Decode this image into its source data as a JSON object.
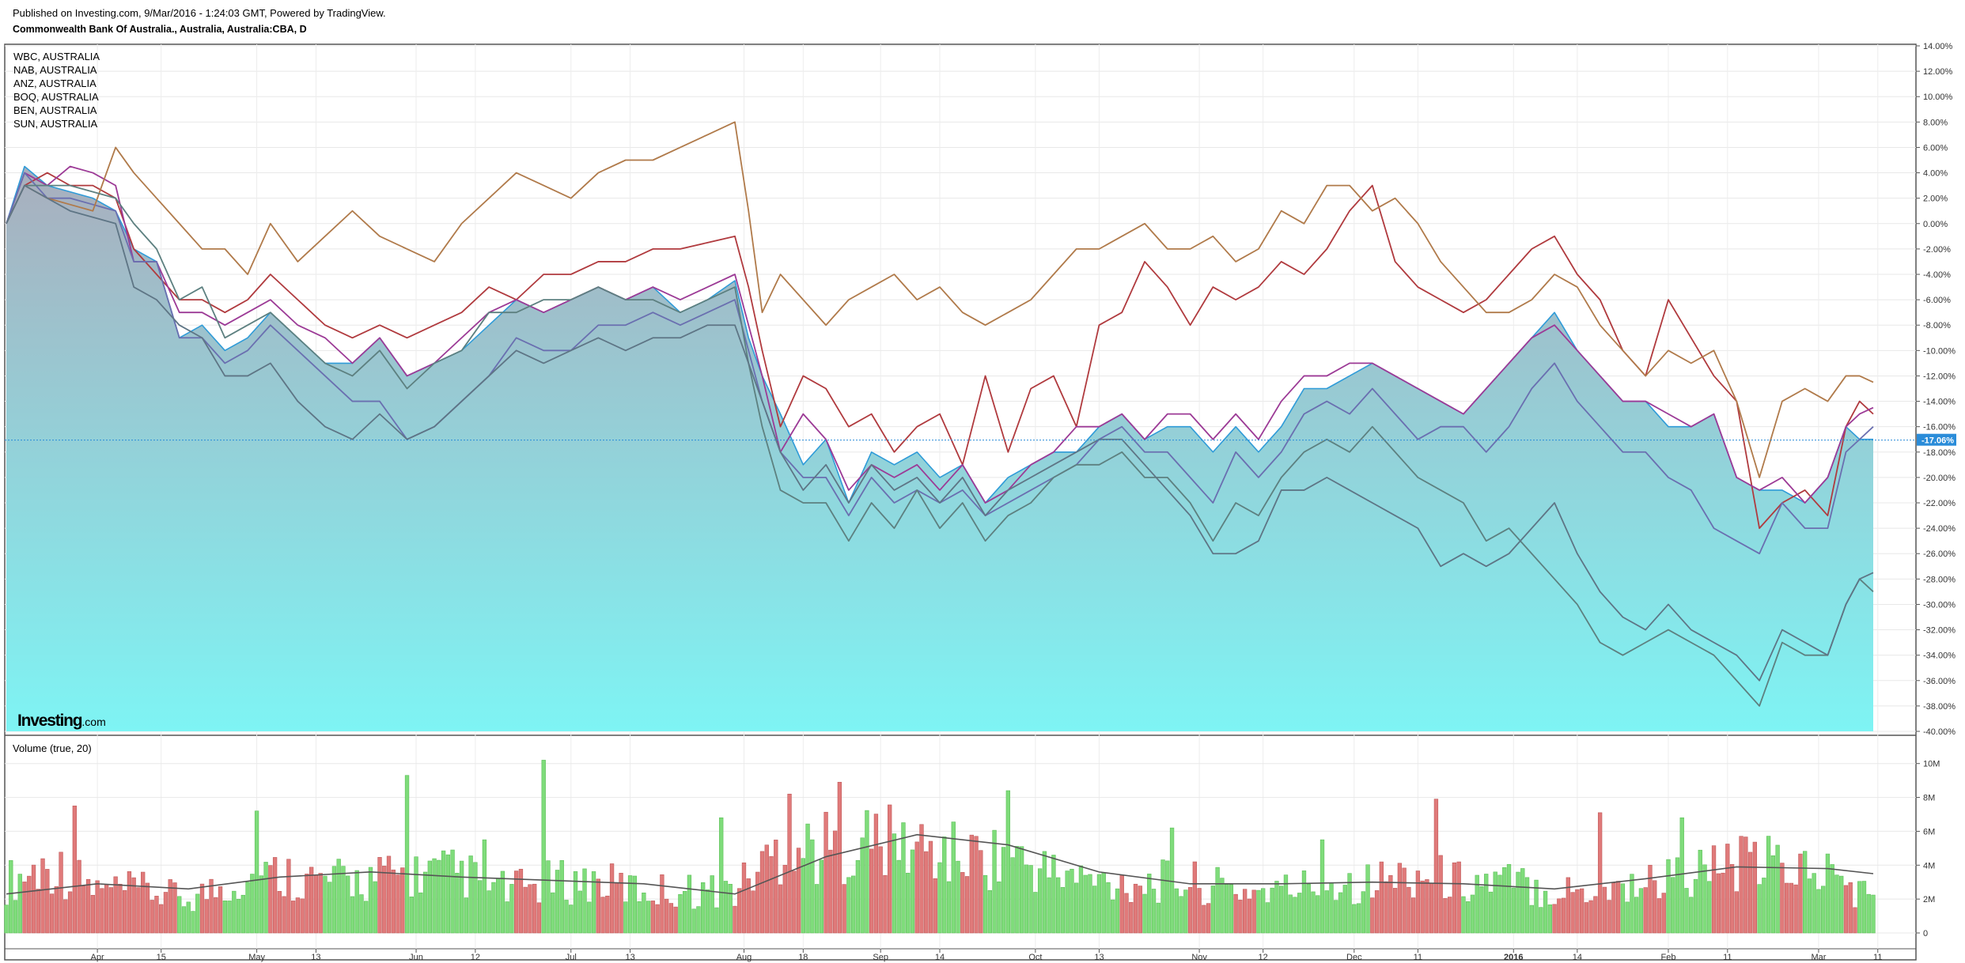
{
  "header": {
    "published": "Published on Investing.com, 9/Mar/2016 - 1:24:03 GMT, Powered by TradingView.",
    "title": "Commonwealth Bank Of Australia., Australia, Australia:CBA, D"
  },
  "legend": [
    "WBC, AUSTRALIA",
    "NAB, AUSTRALIA",
    "ANZ, AUSTRALIA",
    "BOQ, AUSTRALIA",
    "BEN, AUSTRALIA",
    "SUN, AUSTRALIA"
  ],
  "current_value_label": "-17.06%",
  "volume_title": "Volume (true, 20)",
  "logo": {
    "main": "Investing",
    "suffix": ".com"
  },
  "colors": {
    "area_top": "#a9aebd",
    "area_bottom": "#7ef4f4",
    "area_line": "#2f9bd8",
    "up_bar": "#7fdc7b",
    "down_bar": "#e07a7a",
    "current_badge": "#2a8cd9"
  },
  "chart_data": [
    {
      "type": "line",
      "title": "Commonwealth Bank Of Australia., Australia, Australia:CBA, D",
      "y_unit": "%",
      "ylim": [
        -40,
        14
      ],
      "y_ticks": [
        "14.00%",
        "12.00%",
        "10.00%",
        "8.00%",
        "6.00%",
        "4.00%",
        "2.00%",
        "0.00%",
        "-2.00%",
        "-4.00%",
        "-6.00%",
        "-8.00%",
        "-10.00%",
        "-12.00%",
        "-14.00%",
        "-16.00%",
        "-18.00%",
        "-20.00%",
        "-22.00%",
        "-24.00%",
        "-26.00%",
        "-28.00%",
        "-30.00%",
        "-32.00%",
        "-34.00%",
        "-36.00%",
        "-38.00%",
        "-40.00%"
      ],
      "x_ticks": [
        "Apr",
        "15",
        "May",
        "13",
        "Jun",
        "12",
        "Jul",
        "13",
        "Aug",
        "18",
        "Sep",
        "14",
        "Oct",
        "13",
        "Nov",
        "12",
        "Dec",
        "11",
        "2016",
        "14",
        "Feb",
        "11",
        "Mar",
        "11"
      ],
      "x_tick_day": [
        20,
        34,
        55,
        68,
        90,
        103,
        124,
        137,
        162,
        175,
        192,
        205,
        226,
        240,
        262,
        276,
        296,
        310,
        331,
        345,
        365,
        378,
        398,
        411
      ],
      "grid": true,
      "series_points_day": [
        0,
        4,
        9,
        14,
        19,
        24,
        28,
        33,
        38,
        43,
        48,
        53,
        58,
        64,
        70,
        76,
        82,
        88,
        94,
        100,
        106,
        112,
        118,
        124,
        130,
        136,
        142,
        148,
        154,
        160,
        163,
        166,
        170,
        175,
        180,
        185,
        190,
        195,
        200,
        205,
        210,
        215,
        220,
        225,
        230,
        235,
        240,
        245,
        250,
        255,
        260,
        265,
        270,
        275,
        280,
        285,
        290,
        295,
        300,
        305,
        310,
        315,
        320,
        325,
        330,
        335,
        340,
        345,
        350,
        355,
        360,
        365,
        370,
        375,
        380,
        385,
        390,
        395,
        400,
        404,
        407,
        410
      ],
      "series": [
        {
          "name": "CBA",
          "color": "#2f9bd8",
          "area": true,
          "values": [
            0,
            4.5,
            3,
            2.5,
            2,
            1,
            -2,
            -3,
            -9,
            -8,
            -10,
            -9,
            -7,
            -9,
            -11,
            -11,
            -9,
            -12,
            -11,
            -10,
            -8,
            -6,
            -7,
            -6,
            -5,
            -6,
            -5,
            -7,
            -6,
            -4.5,
            -9,
            -12,
            -15,
            -19,
            -17,
            -22,
            -18,
            -19,
            -18,
            -20,
            -19,
            -22,
            -20,
            -19,
            -18,
            -18,
            -16,
            -15,
            -17,
            -16,
            -16,
            -18,
            -16,
            -18,
            -16,
            -13,
            -13,
            -12,
            -11,
            -12,
            -13,
            -14,
            -15,
            -13,
            -11,
            -9,
            -7,
            -10,
            -12,
            -14,
            -14,
            -16,
            -16,
            -15,
            -20,
            -21,
            -21,
            -22,
            -20,
            -16,
            -17,
            -17
          ]
        },
        {
          "name": "WBC, AUSTRALIA",
          "color": "#b03a3e",
          "values": [
            0,
            3,
            4,
            3,
            3,
            2,
            -2,
            -4,
            -6,
            -6,
            -7,
            -6,
            -4,
            -6,
            -8,
            -9,
            -8,
            -9,
            -8,
            -7,
            -5,
            -6,
            -4,
            -4,
            -3,
            -3,
            -2,
            -2,
            -1.5,
            -1,
            -5,
            -10,
            -16,
            -12,
            -13,
            -16,
            -15,
            -18,
            -16,
            -15,
            -19,
            -12,
            -18,
            -13,
            -12,
            -16,
            -8,
            -7,
            -3,
            -5,
            -8,
            -5,
            -6,
            -5,
            -3,
            -4,
            -2,
            1,
            3,
            -3,
            -5,
            -6,
            -7,
            -6,
            -4,
            -2,
            -1,
            -4,
            -6,
            -10,
            -12,
            -6,
            -9,
            -12,
            -14,
            -24,
            -22,
            -21,
            -23,
            -16,
            -14,
            -15
          ]
        },
        {
          "name": "NAB, AUSTRALIA",
          "color": "#9c3a96",
          "values": [
            0,
            4,
            3,
            4.5,
            4,
            3,
            -3,
            -3,
            -7,
            -7,
            -8,
            -7,
            -6,
            -8,
            -9,
            -11,
            -9,
            -12,
            -11,
            -9,
            -7,
            -6,
            -7,
            -6,
            -5,
            -6,
            -5,
            -6,
            -5,
            -4,
            -8,
            -12,
            -18,
            -15,
            -17,
            -21,
            -19,
            -20,
            -19,
            -21,
            -19,
            -22,
            -21,
            -19,
            -18,
            -16,
            -16,
            -15,
            -17,
            -15,
            -15,
            -17,
            -15,
            -17,
            -14,
            -12,
            -12,
            -11,
            -11,
            -12,
            -13,
            -14,
            -15,
            -13,
            -11,
            -9,
            -8,
            -10,
            -12,
            -14,
            -14,
            -15,
            -16,
            -15,
            -20,
            -21,
            -20,
            -22,
            -20,
            -16,
            -15,
            -14.5
          ]
        },
        {
          "name": "ANZ, AUSTRALIA",
          "color": "#6a6fb0",
          "values": [
            0,
            4,
            2,
            2,
            1.5,
            1,
            -3,
            -3,
            -9,
            -9,
            -11,
            -10,
            -8,
            -10,
            -12,
            -14,
            -14,
            -17,
            -16,
            -14,
            -12,
            -9,
            -10,
            -10,
            -8,
            -8,
            -7,
            -8,
            -7,
            -6,
            -10,
            -14,
            -18,
            -20,
            -20,
            -23,
            -20,
            -22,
            -21,
            -22,
            -21,
            -23,
            -22,
            -21,
            -20,
            -19,
            -17,
            -16,
            -18,
            -18,
            -20,
            -22,
            -18,
            -20,
            -18,
            -15,
            -14,
            -15,
            -13,
            -15,
            -17,
            -16,
            -16,
            -18,
            -16,
            -13,
            -11,
            -14,
            -16,
            -18,
            -18,
            -20,
            -21,
            -24,
            -25,
            -26,
            -22,
            -24,
            -24,
            -18,
            -17,
            -16
          ]
        },
        {
          "name": "BOQ, AUSTRALIA",
          "color": "#b07a4a",
          "values": [
            0,
            3,
            2,
            1.5,
            1,
            6,
            4,
            2,
            0,
            -2,
            -2,
            -4,
            0,
            -3,
            -1,
            1,
            -1,
            -2,
            -3,
            0,
            2,
            4,
            3,
            2,
            4,
            5,
            5,
            6,
            7,
            8,
            1,
            -7,
            -4,
            -6,
            -8,
            -6,
            -5,
            -4,
            -6,
            -5,
            -7,
            -8,
            -7,
            -6,
            -4,
            -2,
            -2,
            -1,
            0,
            -2,
            -2,
            -1,
            -3,
            -2,
            1,
            0,
            3,
            3,
            1,
            2,
            0,
            -3,
            -5,
            -7,
            -7,
            -6,
            -4,
            -5,
            -8,
            -10,
            -12,
            -10,
            -11,
            -10,
            -14,
            -20,
            -14,
            -13,
            -14,
            -12,
            -12,
            -12.5
          ]
        },
        {
          "name": "BEN, AUSTRALIA",
          "color": "#5d8080",
          "values": [
            0,
            3,
            3,
            3,
            2.5,
            2,
            0,
            -2,
            -6,
            -5,
            -9,
            -8,
            -7,
            -9,
            -11,
            -12,
            -10,
            -13,
            -11,
            -10,
            -7,
            -7,
            -6,
            -6,
            -5,
            -6,
            -6,
            -7,
            -6,
            -5,
            -11,
            -16,
            -21,
            -22,
            -22,
            -25,
            -22,
            -24,
            -21,
            -24,
            -22,
            -25,
            -23,
            -22,
            -20,
            -19,
            -19,
            -18,
            -20,
            -20,
            -22,
            -25,
            -22,
            -23,
            -20,
            -18,
            -17,
            -18,
            -16,
            -18,
            -20,
            -21,
            -22,
            -25,
            -24,
            -26,
            -28,
            -30,
            -33,
            -34,
            -33,
            -32,
            -33,
            -34,
            -36,
            -38,
            -33,
            -34,
            -34,
            -30,
            -28,
            -29
          ]
        },
        {
          "name": "SUN, AUSTRALIA",
          "color": "#5e7585",
          "values": [
            0,
            3,
            2,
            1,
            0.5,
            0,
            -5,
            -6,
            -8,
            -9,
            -12,
            -12,
            -11,
            -14,
            -16,
            -17,
            -15,
            -17,
            -16,
            -14,
            -12,
            -10,
            -11,
            -10,
            -9,
            -10,
            -9,
            -9,
            -8,
            -8,
            -11,
            -14,
            -18,
            -21,
            -19,
            -22,
            -19,
            -21,
            -20,
            -22,
            -20,
            -23,
            -21,
            -20,
            -19,
            -18,
            -17,
            -17,
            -19,
            -21,
            -23,
            -26,
            -26,
            -25,
            -21,
            -21,
            -20,
            -21,
            -22,
            -23,
            -24,
            -27,
            -26,
            -27,
            -26,
            -24,
            -22,
            -26,
            -29,
            -31,
            -32,
            -30,
            -32,
            -33,
            -34,
            -36,
            -32,
            -33,
            -34,
            -30,
            -28,
            -27.5
          ]
        }
      ]
    },
    {
      "type": "bar",
      "title": "Volume (true, 20)",
      "y_ticks": [
        "10M",
        "8M",
        "6M",
        "4M",
        "2M",
        "0"
      ],
      "ylim": [
        0,
        10.5
      ],
      "y_unit": "M",
      "segment_day": [
        0,
        10,
        20,
        30,
        40,
        50,
        60,
        70,
        80,
        90,
        100,
        110,
        120,
        130,
        140,
        150,
        160,
        170,
        180,
        190,
        200,
        210,
        220,
        230,
        240,
        250,
        260,
        270,
        280,
        290,
        300,
        310,
        320,
        330,
        340,
        350,
        360,
        370,
        380,
        390,
        400,
        410
      ],
      "segment_volume_m": [
        3,
        4,
        2.5,
        2.5,
        2,
        3,
        3.5,
        3,
        3.2,
        3.5,
        3.5,
        2.5,
        3,
        3,
        2.5,
        2.5,
        2.5,
        5,
        5,
        5.5,
        5,
        4.5,
        4.5,
        3.5,
        3,
        3,
        3,
        2.5,
        2.5,
        3,
        3,
        3.5,
        3,
        3,
        2.5,
        2.5,
        3,
        3.5,
        4,
        4,
        3.5,
        2
      ],
      "spikes": [
        {
          "day": 15,
          "value": 7.5
        },
        {
          "day": 55,
          "value": 7.2
        },
        {
          "day": 88,
          "value": 9.3
        },
        {
          "day": 105,
          "value": 5.5
        },
        {
          "day": 118,
          "value": 10.2
        },
        {
          "day": 157,
          "value": 6.8
        },
        {
          "day": 172,
          "value": 8.2
        },
        {
          "day": 183,
          "value": 8.9
        },
        {
          "day": 220,
          "value": 8.4
        },
        {
          "day": 256,
          "value": 6.2
        },
        {
          "day": 289,
          "value": 5.5
        },
        {
          "day": 314,
          "value": 7.9
        },
        {
          "day": 350,
          "value": 7.1
        },
        {
          "day": 368,
          "value": 6.8
        }
      ],
      "ma_line": {
        "name": "MA 20",
        "color": "#555555",
        "points_day": [
          0,
          20,
          40,
          60,
          80,
          100,
          120,
          140,
          160,
          180,
          200,
          220,
          240,
          260,
          280,
          300,
          320,
          340,
          360,
          380,
          400,
          410
        ],
        "values": [
          2.3,
          2.9,
          2.6,
          3.3,
          3.6,
          3.3,
          3.1,
          2.9,
          2.3,
          4.5,
          5.8,
          5.2,
          3.6,
          2.9,
          2.9,
          3.0,
          2.9,
          2.6,
          3.2,
          3.9,
          3.8,
          3.5
        ]
      }
    }
  ]
}
